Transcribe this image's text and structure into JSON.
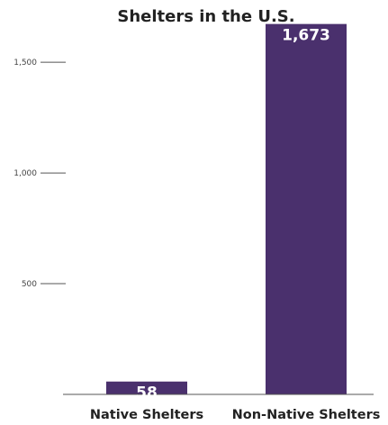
{
  "chart_data": {
    "type": "bar",
    "title": "Shelters in the U.S.",
    "categories": [
      "Native Shelters",
      "Non-Native Shelters"
    ],
    "values": [
      58,
      1673
    ],
    "data_labels": [
      "58",
      "1,673"
    ],
    "yticks": [
      500,
      1000,
      1500
    ],
    "ytick_labels": [
      "500",
      "1,000",
      "1,500"
    ],
    "ylim": [
      0,
      1700
    ],
    "grid": false,
    "legend": "none",
    "bar_color": "#4a306d",
    "axis_color": "#555555"
  }
}
